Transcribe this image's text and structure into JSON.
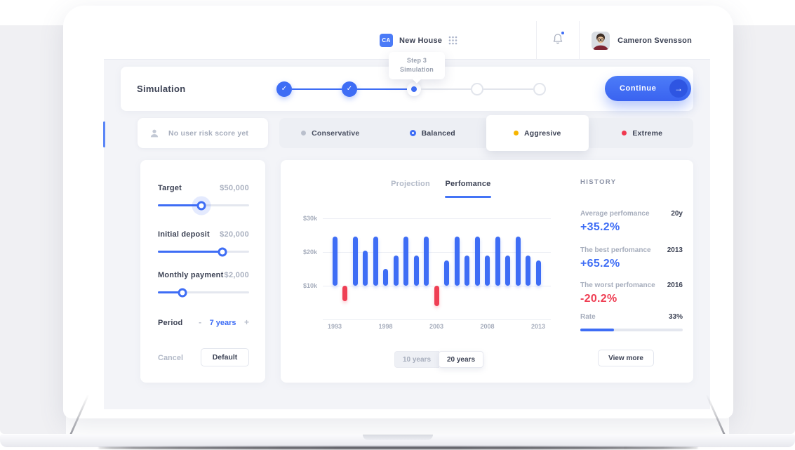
{
  "topbar": {
    "workspace_initials": "CA",
    "workspace_name": "New House",
    "user_name": "Cameron Svensson"
  },
  "tooltip": {
    "line1": "Step 3",
    "line2": "Simulation"
  },
  "stepper": {
    "title": "Simulation",
    "steps": [
      {
        "state": "done"
      },
      {
        "state": "done"
      },
      {
        "state": "current"
      },
      {
        "state": "todo"
      },
      {
        "state": "todo"
      }
    ],
    "check_glyph": "✓",
    "continue_label": "Continue",
    "continue_arrow": "→"
  },
  "risk": {
    "empty_label": "No user risk score yet",
    "options": [
      {
        "label": "Conservative",
        "dot_color": "#b9bfcc",
        "style": "dot",
        "selected": false
      },
      {
        "label": "Balanced",
        "dot_color": "#3e6df5",
        "style": "ring",
        "selected": false
      },
      {
        "label": "Aggresive",
        "dot_color": "#f7b500",
        "style": "dot",
        "selected": true
      },
      {
        "label": "Extreme",
        "dot_color": "#f0394f",
        "style": "dot",
        "selected": false
      }
    ]
  },
  "params": {
    "rows": [
      {
        "label": "Target",
        "value": "$50,000",
        "percent": 48,
        "glow": true
      },
      {
        "label": "Initial deposit",
        "value": "$20,000",
        "percent": 71,
        "glow": false
      },
      {
        "label": "Monthly payment",
        "value": "$2,000",
        "percent": 27,
        "glow": false
      }
    ],
    "period": {
      "label": "Period",
      "minus": "-",
      "value": "7 years",
      "plus": "+"
    },
    "cancel_label": "Cancel",
    "default_label": "Default"
  },
  "chart_card": {
    "tabs": [
      {
        "label": "Projection",
        "active": false
      },
      {
        "label": "Perfomance",
        "active": true
      }
    ],
    "range_toggle": [
      {
        "label": "10 years",
        "active": false
      },
      {
        "label": "20 years",
        "active": true
      }
    ]
  },
  "chart_data": {
    "type": "bar",
    "x": [
      1993,
      1994,
      1995,
      1996,
      1997,
      1998,
      1999,
      2000,
      2001,
      2002,
      2003,
      2004,
      2005,
      2006,
      2007,
      2008,
      2009,
      2010,
      2011,
      2012,
      2013
    ],
    "values": [
      24.5,
      5.5,
      24.5,
      20.5,
      24.5,
      15,
      19,
      24.5,
      19,
      24.5,
      4,
      17.5,
      24.5,
      19,
      24.5,
      19,
      24.5,
      19,
      24.5,
      19,
      17.5
    ],
    "baseline": 10,
    "unit": "$k",
    "ylim": [
      0,
      32
    ],
    "grid": true,
    "bar_color_positive": "#3e6df5",
    "bar_color_negative": "#ef3f54",
    "yticks": [
      {
        "label": "$30k",
        "value": 30
      },
      {
        "label": "$20k",
        "value": 20
      },
      {
        "label": "$10k",
        "value": 10
      },
      {
        "label": "",
        "value": 0
      }
    ],
    "xticks": [
      {
        "label": "1993",
        "index": 0
      },
      {
        "label": "1998",
        "index": 5
      },
      {
        "label": "2003",
        "index": 10
      },
      {
        "label": "2008",
        "index": 15
      },
      {
        "label": "2013",
        "index": 20
      }
    ]
  },
  "history": {
    "title": "HISTORY",
    "rows": [
      {
        "label": "Average perfomance",
        "tag": "20y",
        "value": "+35.2%",
        "color": "#3e6df5"
      },
      {
        "label": "The best perfomance",
        "tag": "2013",
        "value": "+65.2%",
        "color": "#3e6df5"
      },
      {
        "label": "The worst perfomance",
        "tag": "2016",
        "value": "-20.2%",
        "color": "#ef3f54"
      }
    ],
    "rate_label": "Rate",
    "rate_value": "33%",
    "rate_percent": 33,
    "view_more_label": "View more"
  },
  "colors": {
    "primary": "#3e6df5",
    "negative": "#ef3f54",
    "warning": "#f7b500"
  }
}
